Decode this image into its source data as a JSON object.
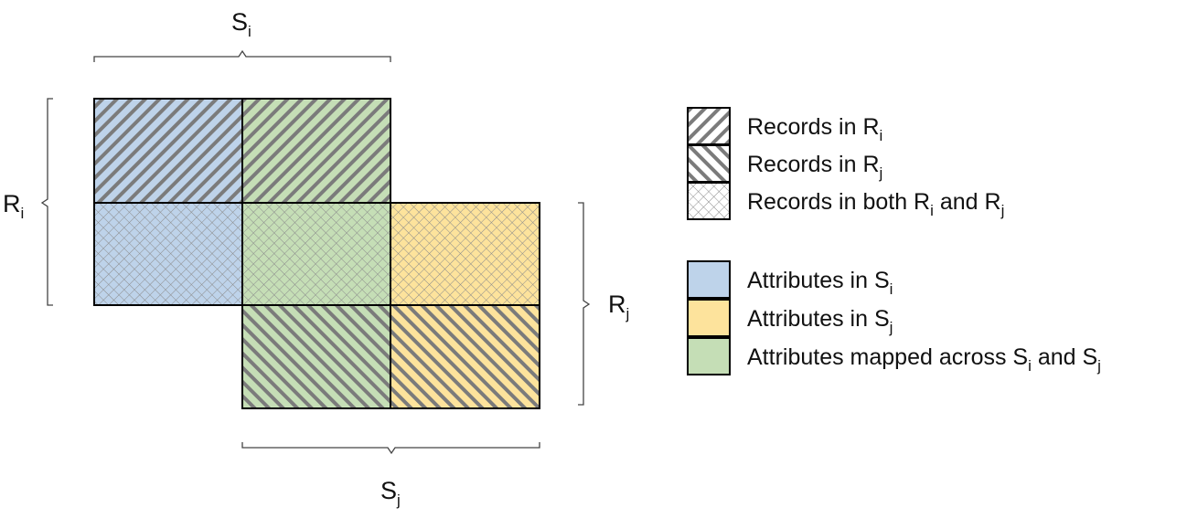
{
  "colors": {
    "blue": "#bed3ea",
    "yellow": "#fde39c",
    "green": "#c5deb6",
    "stripe": "#7b7b7b",
    "cross": "#8c8c8c",
    "border": "#000000"
  },
  "axes": {
    "top": {
      "main": "S",
      "sub": "i"
    },
    "left": {
      "main": "R",
      "sub": "i"
    },
    "right": {
      "main": "R",
      "sub": "j"
    },
    "bottom": {
      "main": "S",
      "sub": "j"
    }
  },
  "grid": [
    {
      "id": "cell-r1-c1",
      "fill": "blue",
      "pattern": "stripe-ri"
    },
    {
      "id": "cell-r1-c2",
      "fill": "green",
      "pattern": "stripe-ri"
    },
    {
      "id": "cell-r2-c1",
      "fill": "blue",
      "pattern": "cross-both"
    },
    {
      "id": "cell-r2-c2",
      "fill": "green",
      "pattern": "cross-both"
    },
    {
      "id": "cell-r2-c3",
      "fill": "yellow",
      "pattern": "cross-both"
    },
    {
      "id": "cell-r3-c2",
      "fill": "green",
      "pattern": "stripe-rj"
    },
    {
      "id": "cell-r3-c3",
      "fill": "yellow",
      "pattern": "stripe-rj"
    }
  ],
  "legend": {
    "records": [
      {
        "pattern": "stripe-ri",
        "parts": [
          {
            "t": "Records in R"
          },
          {
            "t": "i",
            "sub": true
          }
        ]
      },
      {
        "pattern": "stripe-rj",
        "parts": [
          {
            "t": "Records in R"
          },
          {
            "t": "j",
            "sub": true
          }
        ]
      },
      {
        "pattern": "cross-both",
        "parts": [
          {
            "t": "Records in both R"
          },
          {
            "t": "i",
            "sub": true
          },
          {
            "t": " and R"
          },
          {
            "t": "j",
            "sub": true
          }
        ]
      }
    ],
    "attributes": [
      {
        "fill": "blue",
        "parts": [
          {
            "t": "Attributes in S"
          },
          {
            "t": "i",
            "sub": true
          }
        ]
      },
      {
        "fill": "yellow",
        "parts": [
          {
            "t": "Attributes in S"
          },
          {
            "t": "j",
            "sub": true
          }
        ]
      },
      {
        "fill": "green",
        "parts": [
          {
            "t": "Attributes mapped across S"
          },
          {
            "t": "i",
            "sub": true
          },
          {
            "t": " and S"
          },
          {
            "t": "j",
            "sub": true
          }
        ]
      }
    ]
  }
}
